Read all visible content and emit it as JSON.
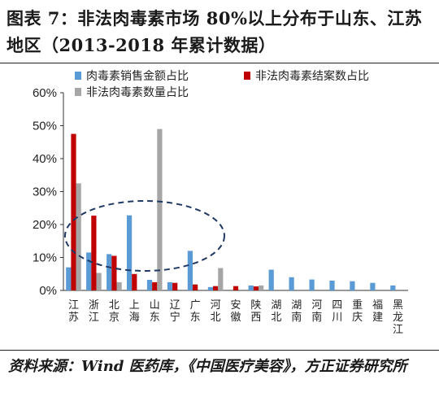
{
  "title": "图表 7：非法肉毒素市场 80%以上分布于山东、江苏地区（2013-2018 年累计数据）",
  "source": "资料来源：Wind 医药库，《中国医疗美容》，方正证券研究所",
  "chart_data": {
    "type": "bar",
    "categories": [
      "江苏",
      "浙江",
      "北京",
      "上海",
      "山东",
      "辽宁",
      "广东",
      "河北",
      "安徽",
      "陕西",
      "湖北",
      "湖南",
      "河南",
      "四川",
      "重庆",
      "福建",
      "黑龙江"
    ],
    "series": [
      {
        "name": "肉毒素销售金额占比",
        "color": "#5b9bd5",
        "values": [
          7.0,
          11.5,
          11.0,
          22.8,
          3.2,
          2.5,
          12.0,
          1.0,
          0,
          1.5,
          6.3,
          4.0,
          3.3,
          3.0,
          2.8,
          2.3,
          1.5
        ]
      },
      {
        "name": "非法肉毒素结案数占比",
        "color": "#c00000",
        "values": [
          47.5,
          22.7,
          10.5,
          5.0,
          2.5,
          2.3,
          1.8,
          1.3,
          1.3,
          1.2,
          0,
          0,
          0,
          0,
          0,
          0,
          0
        ]
      },
      {
        "name": "非法肉毒素数量占比",
        "color": "#a6a6a6",
        "values": [
          32.5,
          5.3,
          2.5,
          0,
          49.0,
          0,
          0,
          6.8,
          0,
          1.5,
          0,
          0,
          0,
          0,
          0,
          0,
          0
        ]
      }
    ],
    "ylim": [
      0,
      60
    ],
    "yticks": [
      "0%",
      "10%",
      "20%",
      "30%",
      "40%",
      "50%",
      "60%"
    ],
    "ytick_values": [
      0,
      10,
      20,
      30,
      40,
      50,
      60
    ],
    "legend_position": "top",
    "annotation": "dashed ellipse highlighting 江苏 and 山东 region"
  }
}
